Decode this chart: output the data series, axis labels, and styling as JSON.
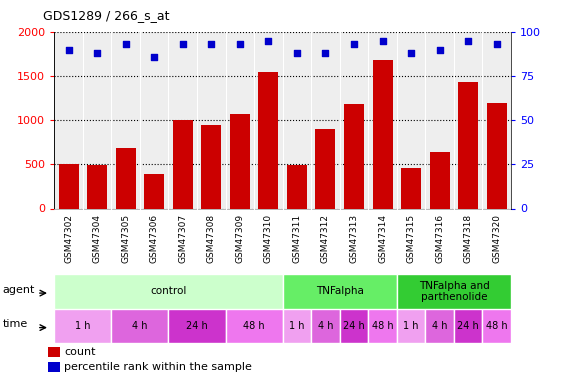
{
  "title": "GDS1289 / 266_s_at",
  "samples": [
    "GSM47302",
    "GSM47304",
    "GSM47305",
    "GSM47306",
    "GSM47307",
    "GSM47308",
    "GSM47309",
    "GSM47310",
    "GSM47311",
    "GSM47312",
    "GSM47313",
    "GSM47314",
    "GSM47315",
    "GSM47316",
    "GSM47318",
    "GSM47320"
  ],
  "counts": [
    500,
    490,
    680,
    390,
    1000,
    940,
    1070,
    1540,
    490,
    900,
    1180,
    1680,
    460,
    640,
    1430,
    1200
  ],
  "percentiles": [
    90,
    88,
    93,
    86,
    93,
    93,
    93,
    95,
    88,
    88,
    93,
    95,
    88,
    90,
    95,
    93
  ],
  "ylim_left": [
    0,
    2000
  ],
  "ylim_right": [
    0,
    100
  ],
  "yticks_left": [
    0,
    500,
    1000,
    1500,
    2000
  ],
  "yticks_right": [
    0,
    25,
    50,
    75,
    100
  ],
  "bar_color": "#cc0000",
  "dot_color": "#0000cc",
  "plot_bg_color": "#eeeeee",
  "xlabel_bg_color": "#cccccc",
  "agent_groups": [
    {
      "label": "control",
      "start": 0,
      "end": 8,
      "color": "#ccffcc"
    },
    {
      "label": "TNFalpha",
      "start": 8,
      "end": 12,
      "color": "#66ee66"
    },
    {
      "label": "TNFalpha and\nparthenolide",
      "start": 12,
      "end": 16,
      "color": "#33cc33"
    }
  ],
  "time_groups": [
    {
      "label": "1 h",
      "start": 0,
      "end": 2,
      "color": "#f0a0f0"
    },
    {
      "label": "4 h",
      "start": 2,
      "end": 4,
      "color": "#dd66dd"
    },
    {
      "label": "24 h",
      "start": 4,
      "end": 6,
      "color": "#cc33cc"
    },
    {
      "label": "48 h",
      "start": 6,
      "end": 8,
      "color": "#ee77ee"
    },
    {
      "label": "1 h",
      "start": 8,
      "end": 9,
      "color": "#f0a0f0"
    },
    {
      "label": "4 h",
      "start": 9,
      "end": 10,
      "color": "#dd66dd"
    },
    {
      "label": "24 h",
      "start": 10,
      "end": 11,
      "color": "#cc33cc"
    },
    {
      "label": "48 h",
      "start": 11,
      "end": 12,
      "color": "#ee77ee"
    },
    {
      "label": "1 h",
      "start": 12,
      "end": 13,
      "color": "#f0a0f0"
    },
    {
      "label": "4 h",
      "start": 13,
      "end": 14,
      "color": "#dd66dd"
    },
    {
      "label": "24 h",
      "start": 14,
      "end": 15,
      "color": "#cc33cc"
    },
    {
      "label": "48 h",
      "start": 15,
      "end": 16,
      "color": "#ee77ee"
    }
  ]
}
